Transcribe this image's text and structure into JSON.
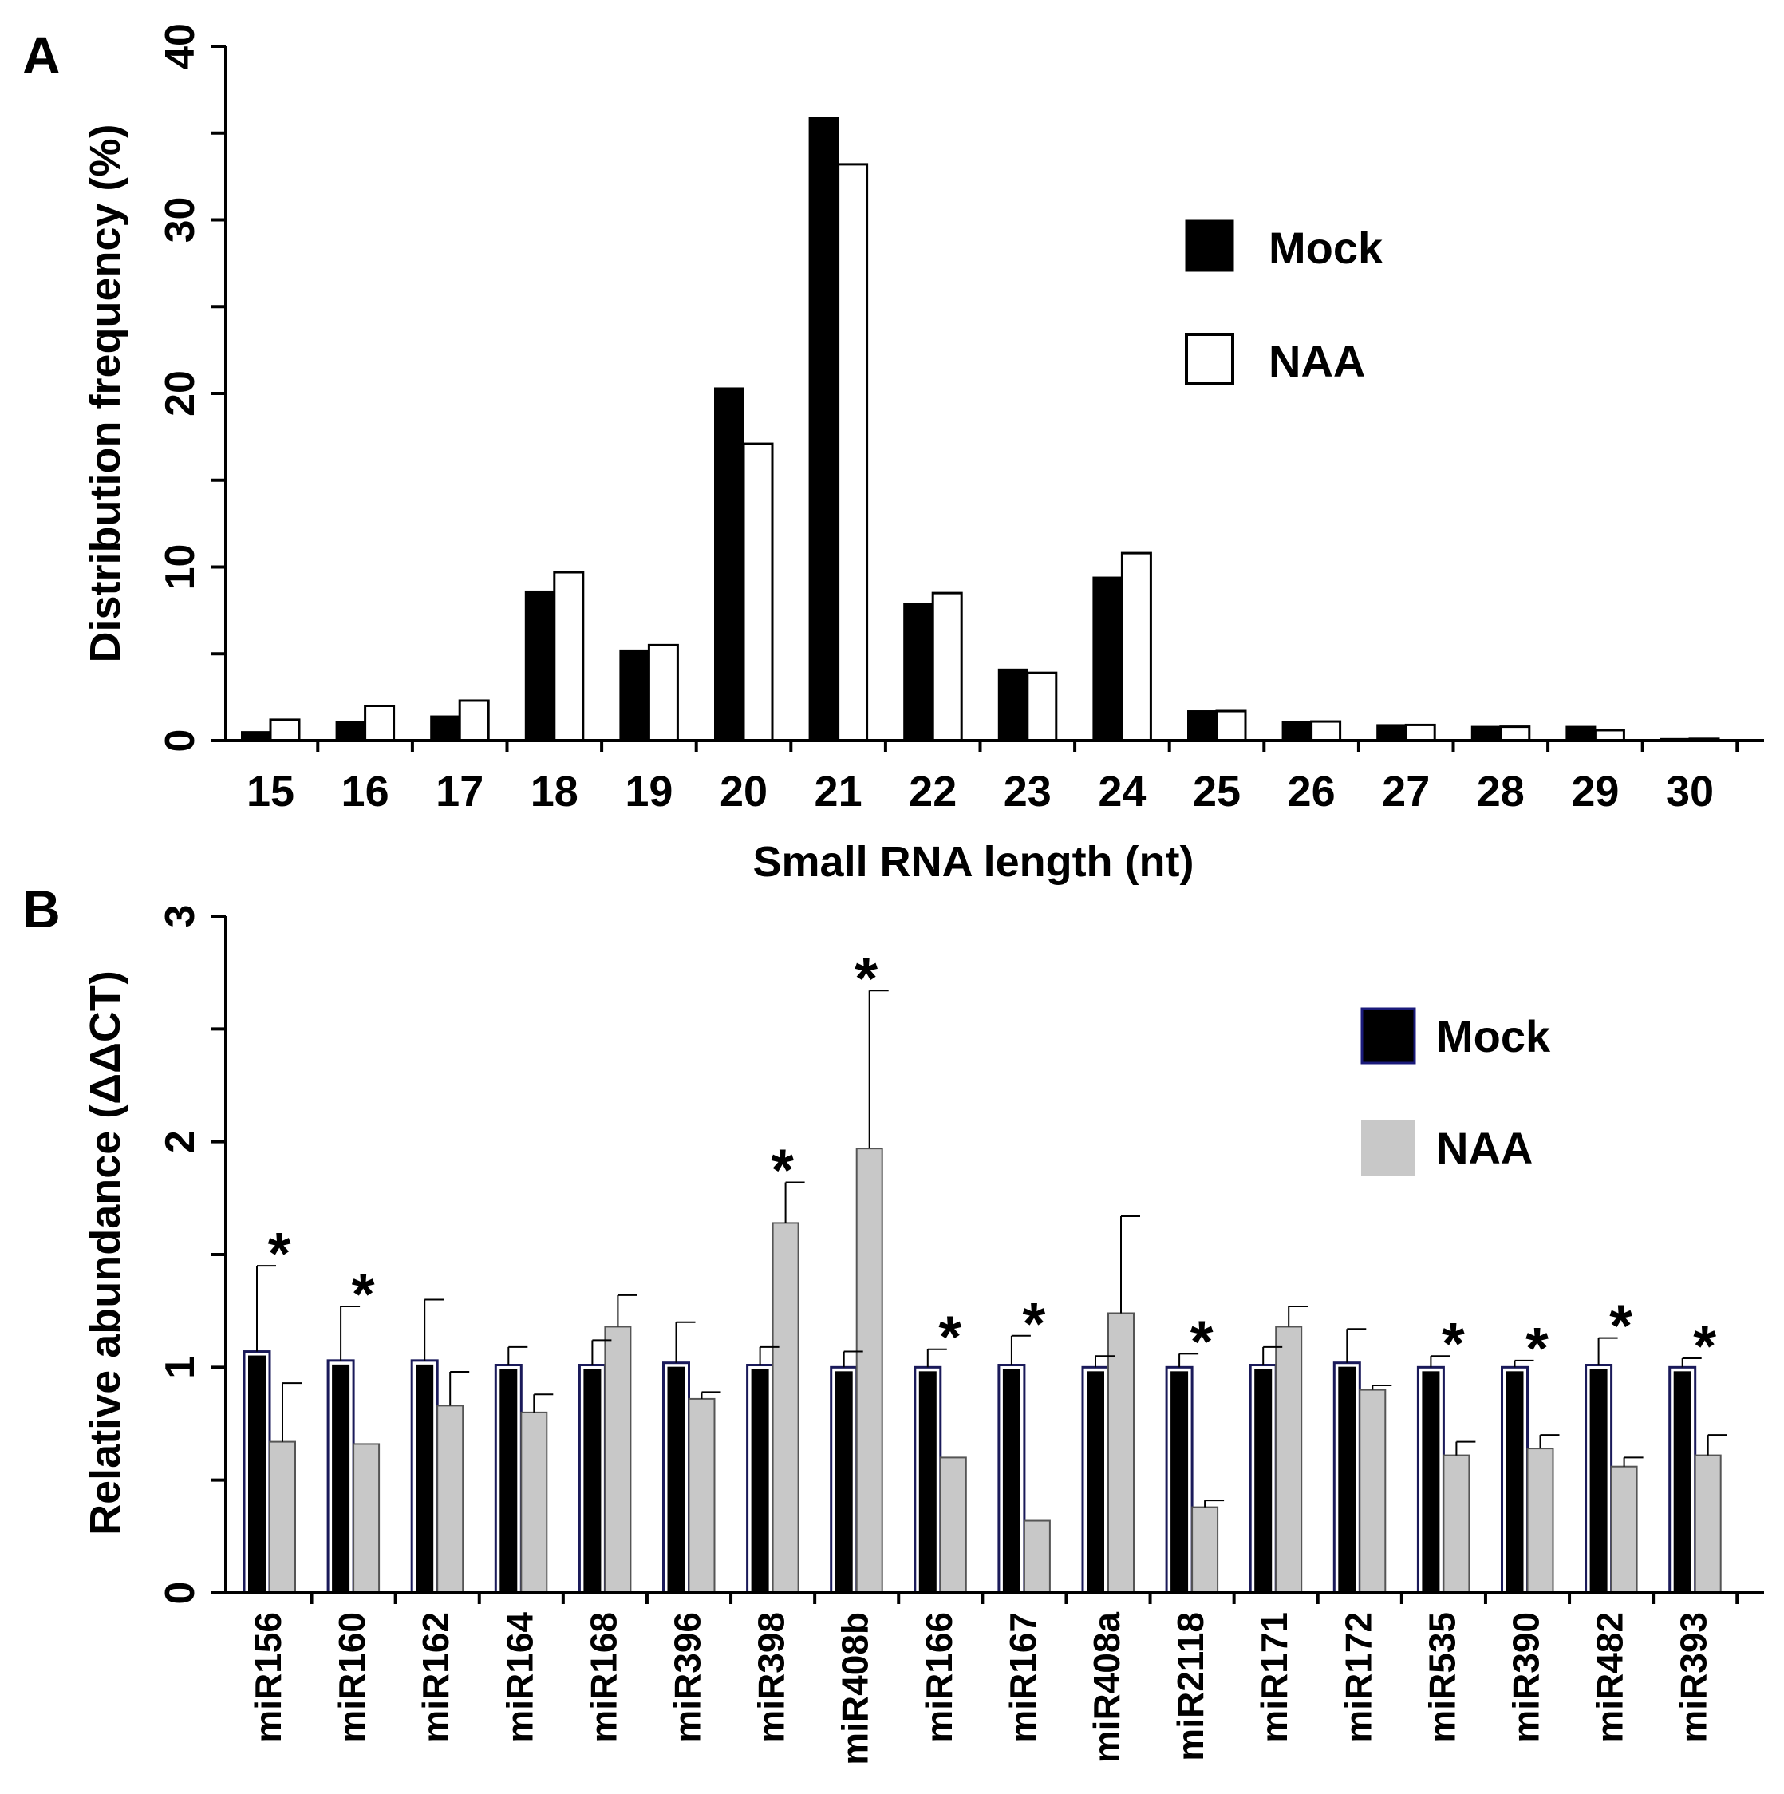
{
  "figure": {
    "panel_a_letter": "A",
    "panel_b_letter": "B"
  },
  "colors": {
    "mock": "#000000",
    "naa_a": "#ffffff",
    "naa_b": "#c8c8c8",
    "axis": "#000000"
  },
  "chart_data": [
    {
      "panel": "A",
      "type": "bar",
      "title": "",
      "xlabel": "Small RNA length (nt)",
      "ylabel": "Distribution frequency (%)",
      "ylim": [
        0,
        40
      ],
      "yticks": [
        "0",
        "10",
        "20",
        "30",
        "40"
      ],
      "categories": [
        "15",
        "16",
        "17",
        "18",
        "19",
        "20",
        "21",
        "22",
        "23",
        "24",
        "25",
        "26",
        "27",
        "28",
        "29",
        "30"
      ],
      "series": [
        {
          "name": "Mock",
          "values": [
            0.5,
            1.1,
            1.4,
            8.6,
            5.2,
            20.3,
            35.9,
            7.9,
            4.1,
            9.4,
            1.7,
            1.1,
            0.9,
            0.8,
            0.8,
            0.1
          ]
        },
        {
          "name": "NAA",
          "values": [
            1.2,
            2.0,
            2.3,
            9.7,
            5.5,
            17.1,
            33.2,
            8.5,
            3.9,
            10.8,
            1.7,
            1.1,
            0.9,
            0.8,
            0.6,
            0.1
          ]
        }
      ],
      "legend": [
        "Mock",
        "NAA"
      ],
      "legend_position": "top-right"
    },
    {
      "panel": "B",
      "type": "bar",
      "title": "",
      "xlabel": "",
      "ylabel": "Relative abundance (ΔΔCT)",
      "ylim": [
        0,
        3
      ],
      "yticks": [
        "0",
        "1",
        "2",
        "3"
      ],
      "categories": [
        "miR156",
        "miR160",
        "miR162",
        "miR164",
        "miR168",
        "miR396",
        "miR398",
        "miR408b",
        "miR166",
        "miR167",
        "miR408a",
        "miR2118",
        "miR171",
        "miR172",
        "miR535",
        "miR390",
        "miR482",
        "miR393"
      ],
      "series": [
        {
          "name": "Mock",
          "values": [
            1.07,
            1.03,
            1.03,
            1.01,
            1.01,
            1.02,
            1.01,
            1.0,
            1.0,
            1.01,
            1.0,
            1.0,
            1.01,
            1.02,
            1.0,
            1.0,
            1.01,
            1.0
          ],
          "errors": [
            0.38,
            0.24,
            0.27,
            0.08,
            0.11,
            0.18,
            0.08,
            0.07,
            0.08,
            0.13,
            0.05,
            0.06,
            0.08,
            0.15,
            0.05,
            0.03,
            0.12,
            0.04
          ]
        },
        {
          "name": "NAA",
          "values": [
            0.67,
            0.66,
            0.83,
            0.8,
            1.18,
            0.86,
            1.64,
            1.97,
            0.6,
            0.32,
            1.24,
            0.38,
            1.18,
            0.9,
            0.61,
            0.64,
            0.56,
            0.61
          ],
          "errors": [
            0.26,
            0.0,
            0.15,
            0.08,
            0.14,
            0.03,
            0.18,
            0.7,
            0.0,
            0.0,
            0.43,
            0.03,
            0.09,
            0.02,
            0.06,
            0.06,
            0.04,
            0.09
          ]
        }
      ],
      "significance": [
        "*",
        "*",
        "",
        "",
        "",
        "",
        "*",
        "*",
        "*",
        "*",
        "",
        "*",
        "",
        "",
        "*",
        "*",
        "*",
        "*"
      ],
      "legend": [
        "Mock",
        "NAA"
      ],
      "legend_position": "top-right"
    }
  ]
}
